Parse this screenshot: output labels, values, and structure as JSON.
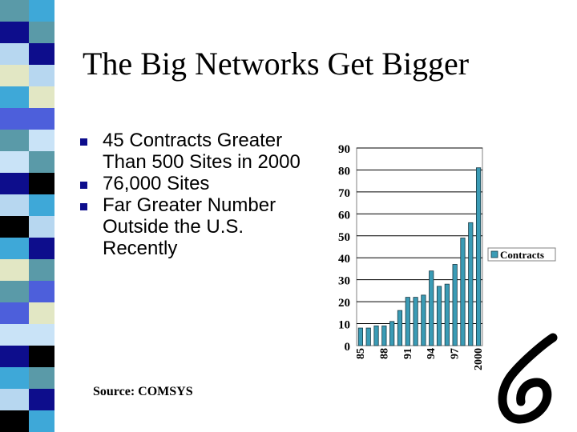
{
  "slide": {
    "title": "The Big Networks Get Bigger",
    "bullets": [
      "45 Contracts Greater Than 500 Sites in 2000",
      "76,000 Sites",
      "Far Greater Number Outside the U.S. Recently"
    ],
    "source": "Source: COMSYS"
  },
  "colors": {
    "bar": "#3a9bb5",
    "bullet_marker": "#0d0d8c",
    "stripe": [
      "#5a9aa8",
      "#b7d7f0",
      "#0d0d8c",
      "#e2e7c4",
      "#3ea8d8",
      "#4d5fdb",
      "#000000",
      "#c9e3f7"
    ]
  },
  "chart_data": {
    "type": "bar",
    "categories": [
      "85",
      "",
      "",
      "88",
      "",
      "",
      "91",
      "",
      "",
      "94",
      "",
      "",
      "97",
      "",
      "",
      "2000"
    ],
    "series": [
      {
        "name": "Contracts",
        "values": [
          8,
          8,
          9,
          9,
          11,
          16,
          22,
          22,
          23,
          34,
          27,
          28,
          37,
          49,
          56,
          81
        ]
      }
    ],
    "ylim": [
      0,
      90
    ],
    "yticks": [
      0,
      10,
      20,
      30,
      40,
      50,
      60,
      70,
      80,
      90
    ],
    "grid": true,
    "legend": "right"
  }
}
